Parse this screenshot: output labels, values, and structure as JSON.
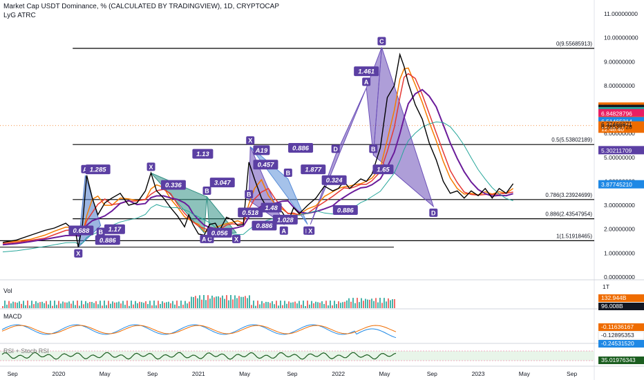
{
  "header": {
    "title": "Market Cap USDT Dominance, % (CALCULATED BY TRADINGVIEW), 1D, CRYPTOCAP",
    "indicator": "LyG ATRC"
  },
  "panes": {
    "volume_label": "Vol",
    "macd_label": "MACD",
    "rsi_label": "RSI + Stoch RSI"
  },
  "chart_data": {
    "type": "line",
    "title": "Market Cap USDT Dominance, % (CALCULATED BY TRADINGVIEW), 1D, CRYPTOCAP",
    "ylim": [
      0,
      11
    ],
    "y_tick_labels": [
      "11.00000000",
      "10.00000000",
      "9.00000000",
      "8.00000000",
      "6.00000000",
      "5.00000000",
      "4.00000000",
      "3.00000000",
      "2.00000000",
      "1.00000000",
      "0.00000000"
    ],
    "y_ticks": [
      11,
      10,
      9,
      8,
      6,
      5,
      4,
      3,
      2,
      1,
      0
    ],
    "x_tick_labels": [
      "Sep",
      "2020",
      "May",
      "Sep",
      "2021",
      "May",
      "Sep",
      "2022",
      "May",
      "Sep",
      "2023",
      "May",
      "Sep"
    ],
    "x_ticks": [
      2019.67,
      2020.0,
      2020.33,
      2020.67,
      2021.0,
      2021.33,
      2021.67,
      2022.0,
      2022.33,
      2022.67,
      2023.0,
      2023.33,
      2023.67
    ],
    "xlim": [
      2019.58,
      2023.83
    ],
    "price_series": [
      [
        2019.6,
        1.45
      ],
      [
        2019.7,
        1.55
      ],
      [
        2019.8,
        1.75
      ],
      [
        2019.9,
        1.95
      ],
      [
        2019.97,
        2.05
      ],
      [
        2020.05,
        2.25
      ],
      [
        2020.12,
        1.9
      ],
      [
        2020.14,
        1.25
      ],
      [
        2020.17,
        2.2
      ],
      [
        2020.2,
        4.25
      ],
      [
        2020.24,
        3.3
      ],
      [
        2020.28,
        2.6
      ],
      [
        2020.33,
        3.1
      ],
      [
        2020.38,
        3.3
      ],
      [
        2020.44,
        3.5
      ],
      [
        2020.5,
        3.0
      ],
      [
        2020.56,
        3.1
      ],
      [
        2020.62,
        3.6
      ],
      [
        2020.66,
        4.35
      ],
      [
        2020.7,
        3.6
      ],
      [
        2020.75,
        3.3
      ],
      [
        2020.8,
        2.9
      ],
      [
        2020.85,
        2.55
      ],
      [
        2020.9,
        2.1
      ],
      [
        2020.93,
        2.6
      ],
      [
        2020.96,
        2.2
      ],
      [
        2021.0,
        1.8
      ],
      [
        2021.04,
        1.75
      ],
      [
        2021.08,
        2.2
      ],
      [
        2021.12,
        2.25
      ],
      [
        2021.15,
        1.95
      ],
      [
        2021.2,
        2.5
      ],
      [
        2021.24,
        2.4
      ],
      [
        2021.28,
        2.15
      ],
      [
        2021.32,
        2.2
      ],
      [
        2021.36,
        4.8
      ],
      [
        2021.4,
        4.1
      ],
      [
        2021.45,
        3.3
      ],
      [
        2021.5,
        2.8
      ],
      [
        2021.55,
        3.0
      ],
      [
        2021.6,
        2.7
      ],
      [
        2021.64,
        2.3
      ],
      [
        2021.68,
        2.9
      ],
      [
        2021.72,
        2.65
      ],
      [
        2021.78,
        3.0
      ],
      [
        2021.84,
        3.3
      ],
      [
        2021.9,
        3.8
      ],
      [
        2021.96,
        3.6
      ],
      [
        2022.0,
        3.7
      ],
      [
        2022.04,
        4.0
      ],
      [
        2022.08,
        3.7
      ],
      [
        2022.12,
        3.9
      ],
      [
        2022.16,
        4.1
      ],
      [
        2022.2,
        4.0
      ],
      [
        2022.24,
        4.3
      ],
      [
        2022.3,
        5.4
      ],
      [
        2022.35,
        7.5
      ],
      [
        2022.4,
        8.0
      ],
      [
        2022.44,
        9.3
      ],
      [
        2022.47,
        8.8
      ],
      [
        2022.5,
        8.1
      ],
      [
        2022.55,
        7.2
      ],
      [
        2022.6,
        6.6
      ],
      [
        2022.65,
        5.6
      ],
      [
        2022.7,
        4.9
      ],
      [
        2022.75,
        4.0
      ],
      [
        2022.8,
        3.5
      ],
      [
        2022.85,
        3.6
      ],
      [
        2022.9,
        3.3
      ],
      [
        2022.95,
        3.6
      ],
      [
        2023.0,
        3.4
      ],
      [
        2023.05,
        3.7
      ],
      [
        2023.1,
        3.3
      ],
      [
        2023.15,
        3.7
      ],
      [
        2023.2,
        3.5
      ],
      [
        2023.25,
        3.9
      ]
    ],
    "harmonic_points": [
      {
        "label": "X",
        "x": 2020.14,
        "y": 1.25
      },
      {
        "label": "A",
        "x": 2020.19,
        "y": 4.25
      },
      {
        "label": "B",
        "x": 2020.3,
        "y": 2.15
      },
      {
        "label": "X",
        "x": 2020.66,
        "y": 4.35
      },
      {
        "label": "A",
        "x": 2021.04,
        "y": 1.85
      },
      {
        "label": "B",
        "x": 2021.06,
        "y": 3.35
      },
      {
        "label": "C",
        "x": 2021.08,
        "y": 1.85
      },
      {
        "label": "X",
        "x": 2021.27,
        "y": 1.85
      },
      {
        "label": "B",
        "x": 2021.36,
        "y": 3.2
      },
      {
        "label": "X",
        "x": 2021.37,
        "y": 5.45
      },
      {
        "label": "A",
        "x": 2021.61,
        "y": 2.2
      },
      {
        "label": "B",
        "x": 2021.64,
        "y": 4.1
      },
      {
        "label": "D",
        "x": 2021.78,
        "y": 2.2
      },
      {
        "label": "X",
        "x": 2021.8,
        "y": 2.2
      },
      {
        "label": "D",
        "x": 2021.98,
        "y": 5.1
      },
      {
        "label": "A",
        "x": 2022.2,
        "y": 7.9
      },
      {
        "label": "B",
        "x": 2022.25,
        "y": 5.1
      },
      {
        "label": "C",
        "x": 2022.31,
        "y": 9.6
      },
      {
        "label": "D",
        "x": 2022.68,
        "y": 2.95
      }
    ],
    "pattern_ratios": [
      "1.285",
      "0.688",
      "1.17",
      "0.886",
      "0.336",
      "1.13",
      "3.047",
      "0.056",
      "0.518",
      "A19",
      "0.457",
      "1.48",
      "1.028",
      "0.886",
      "0.886",
      "1.877",
      "0.324",
      "0.886",
      "1.461",
      "1.65"
    ],
    "fib_levels": [
      {
        "label": "0(9.55685913)",
        "value": 9.55685913
      },
      {
        "label": "0.5(5.53802189)",
        "value": 5.53802189
      },
      {
        "label": "0.786(3.23924699)",
        "value": 3.23924699
      },
      {
        "label": "0.886(2.43547954)",
        "value": 2.43547954
      },
      {
        "label": "1(1.51918465)",
        "value": 1.51918465
      }
    ],
    "axis_badges": [
      {
        "text": "7.12427626",
        "value": 7.12427626,
        "color": "#ef6c00"
      },
      {
        "text": "7.02796223",
        "value": 7.02796223,
        "color": "#131722"
      },
      {
        "text": "6.92994792",
        "value": 6.92994792,
        "color": "#26a69a"
      },
      {
        "text": "6.84828796",
        "value": 6.84828796,
        "color": "#e91e63"
      },
      {
        "text": "6.55448675",
        "value": 6.55448675,
        "color": "#f44336"
      },
      {
        "text": "6.51465214",
        "value": 6.51465214,
        "color": "#1e88e5"
      },
      {
        "text": "6.33478632",
        "value": 6.33478632,
        "color": "#ef6c00"
      },
      {
        "text": "12:48:40",
        "value": 6.2,
        "color": "#ef6c00"
      },
      {
        "text": "5.30211709",
        "value": 5.30211709,
        "color": "#5b3fa3"
      },
      {
        "text": "3.87745210",
        "value": 3.8774521,
        "color": "#1e88e5"
      }
    ],
    "axis_plain_labels": [
      {
        "text": "6.37466871",
        "value": 6.37466871
      },
      {
        "text": "6.28536728",
        "value": 6.28536728
      }
    ],
    "volume_axis": {
      "top_label": "1T",
      "badges": [
        {
          "text": "132.944B",
          "color": "#ef6c00"
        },
        {
          "text": "96.008B",
          "color": "#131722"
        }
      ]
    },
    "macd_axis": {
      "badges": [
        {
          "text": "-0.11636167",
          "color": "#ef6c00"
        },
        {
          "text": "-0.12895353",
          "color": "#ffffff"
        },
        {
          "text": "-0.24531520",
          "color": "#1e88e5"
        }
      ]
    },
    "rsi_axis": {
      "badges": [
        {
          "text": "35.01976343",
          "color": "#1b5e20"
        }
      ]
    }
  }
}
